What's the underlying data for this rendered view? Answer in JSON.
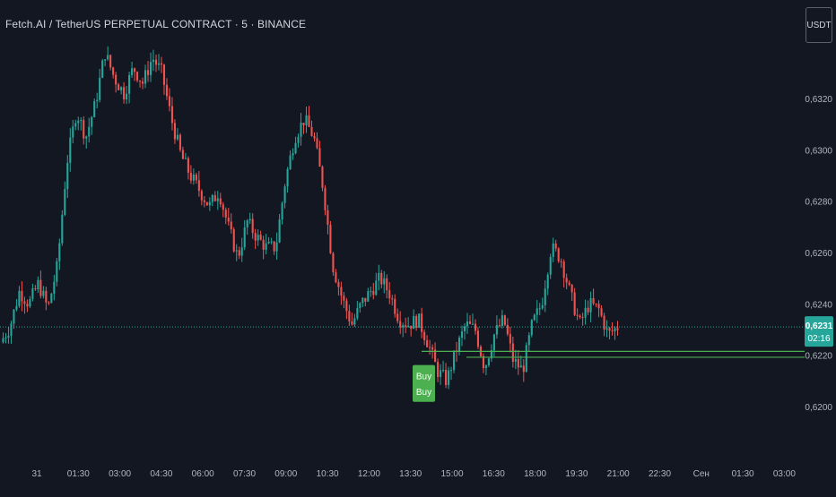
{
  "title": "Fetch.AI / TetherUS PERPETUAL CONTRACT · 5 · BINANCE",
  "currency": "USDT",
  "last_price": {
    "price": "0,6231",
    "countdown": "02:16"
  },
  "chart_data": {
    "type": "candlestick",
    "y_ticks": [
      "0,6320",
      "0,6300",
      "0,6280",
      "0,6260",
      "0,6240",
      "0,6220",
      "0,6200"
    ],
    "x_ticks": [
      "31",
      "01:30",
      "03:00",
      "04:30",
      "06:00",
      "07:30",
      "09:00",
      "10:30",
      "12:00",
      "13:30",
      "15:00",
      "16:30",
      "18:00",
      "19:30",
      "21:00",
      "22:30",
      "Сен",
      "01:30",
      "03:00"
    ],
    "ylim": [
      0.6195,
      0.634
    ],
    "grid": false,
    "last_price_value": 0.6231,
    "horizontal_levels": [
      {
        "price": 0.62215,
        "color": "#4caf50"
      },
      {
        "price": 0.62192,
        "color": "#4caf50"
      }
    ],
    "annotations": [
      {
        "text": "Buy",
        "color": "#4caf50",
        "price": 0.6212
      },
      {
        "text": "Buy",
        "color": "#4caf50",
        "price": 0.6206
      }
    ],
    "path": [
      0.6225,
      0.6231,
      0.6245,
      0.624,
      0.6248,
      0.6238,
      0.6255,
      0.6295,
      0.6315,
      0.6305,
      0.6318,
      0.6338,
      0.6328,
      0.6322,
      0.6332,
      0.6326,
      0.6336,
      0.633,
      0.6312,
      0.6298,
      0.629,
      0.6284,
      0.6278,
      0.6284,
      0.627,
      0.6258,
      0.6272,
      0.6266,
      0.6262,
      0.6262,
      0.6288,
      0.6305,
      0.6312,
      0.6305,
      0.6285,
      0.6255,
      0.6242,
      0.6232,
      0.624,
      0.6245,
      0.625,
      0.6244,
      0.6234,
      0.6232,
      0.6234,
      0.6225,
      0.6214,
      0.621,
      0.6222,
      0.6232,
      0.623,
      0.6215,
      0.6228,
      0.6234,
      0.6218,
      0.6214,
      0.6232,
      0.624,
      0.6262,
      0.6258,
      0.6244,
      0.6232,
      0.624,
      0.6238,
      0.6228,
      0.6231
    ]
  }
}
